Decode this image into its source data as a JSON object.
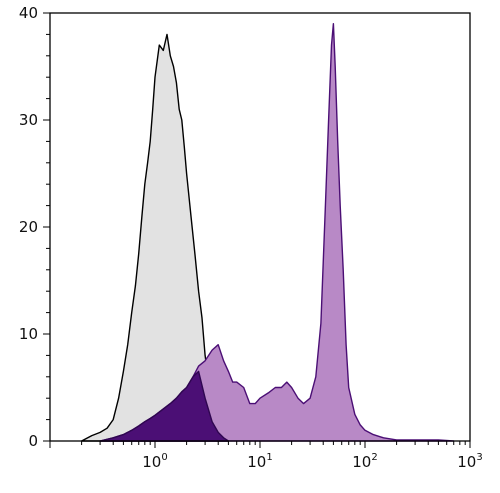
{
  "chart_data": {
    "type": "area",
    "title": "",
    "xlabel": "",
    "ylabel": "",
    "x_scale": "log",
    "xlim": [
      0.1,
      1000
    ],
    "ylim": [
      0,
      40
    ],
    "grid": false,
    "x_tick_labels": [
      {
        "value": 1,
        "base": "10",
        "exp": "0"
      },
      {
        "value": 10,
        "base": "10",
        "exp": "1"
      },
      {
        "value": 100,
        "base": "10",
        "exp": "2"
      },
      {
        "value": 1000,
        "base": "10",
        "exp": "3"
      }
    ],
    "y_ticks": [
      0,
      10,
      20,
      30,
      40
    ],
    "y_tick_labels": [
      "0",
      "10",
      "20",
      "30",
      "40"
    ],
    "series": [
      {
        "fill": "#e2e2e2",
        "stroke": "#000000",
        "x": [
          0.2,
          0.25,
          0.3,
          0.35,
          0.4,
          0.45,
          0.5,
          0.55,
          0.6,
          0.65,
          0.7,
          0.75,
          0.8,
          0.85,
          0.9,
          0.95,
          1.0,
          1.1,
          1.2,
          1.3,
          1.4,
          1.5,
          1.6,
          1.7,
          1.8,
          1.9,
          2.0,
          2.2,
          2.4,
          2.6,
          2.8,
          3.0,
          3.3,
          3.6,
          4.0,
          4.5,
          5.0
        ],
        "y": [
          0,
          0.5,
          0.8,
          1.2,
          2,
          4,
          6.5,
          9,
          12,
          14.5,
          17.5,
          21,
          24,
          26,
          28,
          31,
          34,
          37,
          36.5,
          38,
          36,
          35,
          33.5,
          31,
          30,
          27.5,
          25,
          21,
          17.5,
          14,
          11.5,
          8,
          5,
          3,
          1.5,
          0.5,
          0
        ]
      },
      {
        "fill": "#b889c6",
        "stroke": "#4b0f75",
        "x": [
          0.3,
          0.4,
          0.5,
          0.6,
          0.7,
          0.8,
          0.9,
          1.0,
          1.2,
          1.4,
          1.6,
          1.8,
          2.0,
          2.3,
          2.6,
          3.0,
          3.5,
          4.0,
          4.5,
          5.0,
          5.5,
          6.0,
          7.0,
          8.0,
          9.0,
          10,
          12,
          14,
          16,
          18,
          20,
          23,
          26,
          30,
          34,
          38,
          42,
          45,
          48,
          50,
          52,
          55,
          58,
          62,
          66,
          70,
          80,
          90,
          100,
          120,
          150,
          200,
          300,
          500,
          700
        ],
        "y": [
          0,
          0.3,
          0.6,
          1.0,
          1.4,
          1.8,
          2.1,
          2.4,
          3.0,
          3.5,
          4.0,
          4.6,
          5.0,
          6.0,
          7.0,
          7.5,
          8.5,
          9.0,
          7.5,
          6.5,
          5.5,
          5.5,
          5.0,
          3.5,
          3.5,
          4.0,
          4.5,
          5.0,
          5.0,
          5.5,
          5.0,
          4.0,
          3.5,
          4.0,
          6.0,
          11,
          22,
          30,
          37,
          39,
          35,
          28,
          22,
          16,
          9,
          5,
          2.5,
          1.5,
          1.0,
          0.6,
          0.3,
          0.1,
          0.1,
          0.1,
          0
        ]
      },
      {
        "fill": "#4b0f75",
        "stroke": "#2f0650",
        "x": [
          0.3,
          0.4,
          0.5,
          0.6,
          0.7,
          0.8,
          0.9,
          1.0,
          1.2,
          1.4,
          1.6,
          1.8,
          2.0,
          2.3,
          2.6,
          3.0,
          3.5,
          4.0,
          4.5,
          5.0
        ],
        "y": [
          0,
          0.3,
          0.6,
          1.0,
          1.4,
          1.8,
          2.1,
          2.4,
          3.0,
          3.5,
          4.0,
          4.6,
          5.0,
          6.0,
          6.5,
          4.0,
          1.8,
          0.8,
          0.3,
          0
        ]
      }
    ]
  }
}
